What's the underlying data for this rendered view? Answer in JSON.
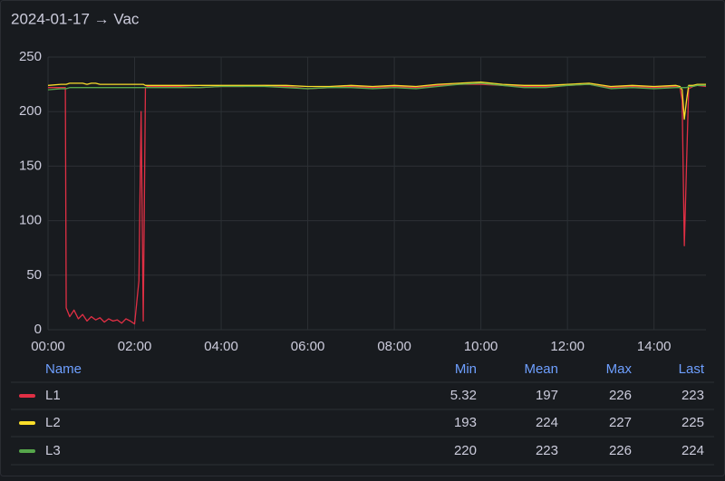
{
  "chart_data": {
    "type": "line",
    "title": "2024-01-17 → Vac",
    "x": [
      0,
      0.3,
      0.4,
      0.42,
      0.5,
      0.6,
      0.7,
      0.8,
      0.9,
      1.0,
      1.1,
      1.2,
      1.3,
      1.4,
      1.5,
      1.6,
      1.7,
      1.8,
      1.9,
      2.0,
      2.1,
      2.15,
      2.2,
      2.25,
      2.3,
      2.5,
      3,
      3.5,
      4,
      4.5,
      5,
      5.5,
      6,
      6.5,
      7,
      7.5,
      8,
      8.5,
      9,
      9.5,
      10,
      10.5,
      11,
      11.5,
      12,
      12.5,
      13,
      13.5,
      14,
      14.5,
      14.6,
      14.65,
      14.7,
      14.75,
      14.8,
      14.9,
      15,
      15.2
    ],
    "series": [
      {
        "name": "L1",
        "color": "#e02f44",
        "values": [
          222,
          222,
          222,
          20,
          12,
          18,
          10,
          14,
          8,
          12,
          9,
          11,
          7,
          10,
          8,
          9,
          6,
          10,
          8,
          5.32,
          45,
          200,
          8,
          222,
          223,
          223,
          223,
          222,
          223,
          223,
          224,
          223,
          221,
          222,
          223,
          222,
          223,
          222,
          224,
          225,
          225,
          224,
          223,
          223,
          224,
          225,
          222,
          223,
          222,
          223,
          222,
          210,
          77,
          150,
          221,
          223,
          224,
          223
        ]
      },
      {
        "name": "L2",
        "color": "#fade2a",
        "values": [
          224,
          225,
          225,
          225,
          226,
          226,
          226,
          226,
          225,
          226,
          226,
          225,
          225,
          225,
          225,
          225,
          225,
          225,
          225,
          225,
          225,
          225,
          225,
          224,
          224,
          224,
          224,
          224,
          224,
          224,
          224,
          224,
          223,
          223,
          224,
          223,
          224,
          223,
          225,
          226,
          227,
          225,
          224,
          224,
          225,
          226,
          223,
          224,
          223,
          224,
          223,
          220,
          193,
          210,
          224,
          224,
          225,
          225
        ]
      },
      {
        "name": "L3",
        "color": "#56a64b",
        "values": [
          220,
          221,
          221,
          221,
          222,
          222,
          222,
          222,
          222,
          222,
          222,
          222,
          222,
          222,
          222,
          222,
          222,
          222,
          222,
          222,
          222,
          222,
          222,
          222,
          222,
          222,
          222,
          222,
          223,
          223,
          223,
          222,
          221,
          222,
          222,
          221,
          222,
          221,
          223,
          225,
          226,
          224,
          222,
          222,
          224,
          225,
          221,
          222,
          221,
          222,
          222,
          222,
          222,
          222,
          223,
          223,
          224,
          224
        ]
      }
    ],
    "xlim": [
      0,
      15.2
    ],
    "xticks": [
      {
        "value": 0,
        "label": "00:00"
      },
      {
        "value": 2,
        "label": "02:00"
      },
      {
        "value": 4,
        "label": "04:00"
      },
      {
        "value": 6,
        "label": "06:00"
      },
      {
        "value": 8,
        "label": "08:00"
      },
      {
        "value": 10,
        "label": "10:00"
      },
      {
        "value": 12,
        "label": "12:00"
      },
      {
        "value": 14,
        "label": "14:00"
      }
    ],
    "ylim": [
      0,
      250
    ],
    "yticks": [
      0,
      50,
      100,
      150,
      200,
      250
    ],
    "grid": true,
    "legend": {
      "columns": [
        "Name",
        "Min",
        "Mean",
        "Max",
        "Last"
      ],
      "rows": [
        [
          "L1",
          5.32,
          197,
          226,
          223
        ],
        [
          "L2",
          193,
          224,
          227,
          225
        ],
        [
          "L3",
          220,
          223,
          226,
          224
        ]
      ]
    }
  }
}
